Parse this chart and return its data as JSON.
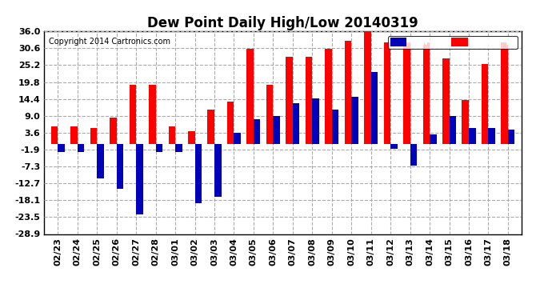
{
  "title": "Dew Point Daily High/Low 20140319",
  "copyright": "Copyright 2014 Cartronics.com",
  "dates": [
    "02/23",
    "02/24",
    "02/25",
    "02/26",
    "02/27",
    "02/28",
    "03/01",
    "03/02",
    "03/03",
    "03/04",
    "03/05",
    "03/06",
    "03/07",
    "03/08",
    "03/09",
    "03/10",
    "03/11",
    "03/12",
    "03/13",
    "03/14",
    "03/15",
    "03/16",
    "03/17",
    "03/18"
  ],
  "highs": [
    5.5,
    5.5,
    5.0,
    8.5,
    19.0,
    19.0,
    5.5,
    4.0,
    11.0,
    13.5,
    30.5,
    19.0,
    28.0,
    28.0,
    30.5,
    33.0,
    37.0,
    32.5,
    32.5,
    32.5,
    27.5,
    14.0,
    25.5,
    32.5
  ],
  "lows": [
    -2.5,
    -2.5,
    -11.0,
    -14.5,
    -22.5,
    -2.5,
    -2.5,
    -19.0,
    -17.0,
    3.5,
    8.0,
    9.0,
    13.0,
    14.5,
    11.0,
    15.0,
    23.0,
    -1.5,
    -7.0,
    3.0,
    9.0,
    5.0,
    5.0,
    4.5
  ],
  "ylim": [
    -28.9,
    36.0
  ],
  "yticks": [
    36.0,
    30.6,
    25.2,
    19.8,
    14.4,
    9.0,
    3.6,
    -1.9,
    -7.3,
    -12.7,
    -18.1,
    -23.5,
    -28.9
  ],
  "high_color": "#ff0000",
  "low_color": "#0000bb",
  "bg_color": "#ffffff",
  "plot_bg": "#ffffff",
  "grid_color": "#aaaaaa",
  "bar_width": 0.35,
  "title_fontsize": 12,
  "tick_fontsize": 8,
  "legend_low_bg": "#0000bb",
  "legend_high_bg": "#ff0000"
}
